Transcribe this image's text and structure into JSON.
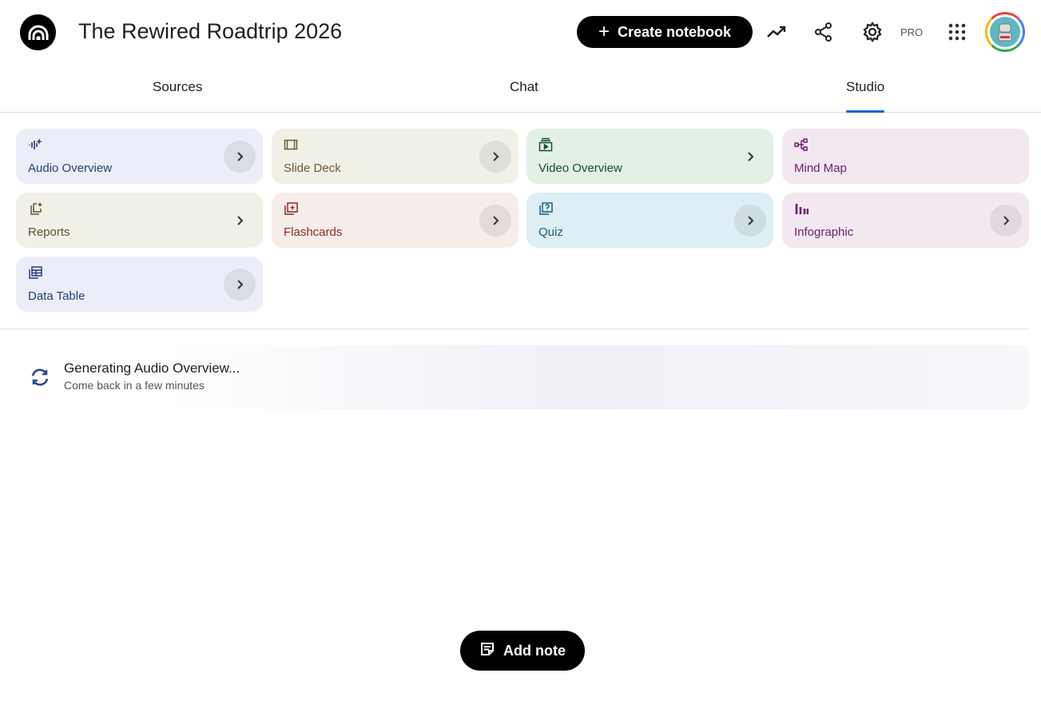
{
  "header": {
    "title": "The Rewired Roadtrip 2026",
    "create_label": "Create notebook",
    "pro_label": "PRO"
  },
  "tabs": [
    {
      "label": "Sources"
    },
    {
      "label": "Chat"
    },
    {
      "label": "Studio",
      "active": true
    }
  ],
  "studio": {
    "cards": [
      {
        "label": "Audio Overview",
        "icon": "audio-waveform-icon",
        "bg": "#ebeef8",
        "fg": "#2b3a7a"
      },
      {
        "label": "Slide Deck",
        "icon": "slides-icon",
        "bg": "#f1f0e7",
        "fg": "#6b5a37"
      },
      {
        "label": "Video Overview",
        "icon": "video-icon",
        "bg": "#e2f0e5",
        "fg": "#1d4b2a"
      },
      {
        "label": "Mind Map",
        "icon": "mind-map-icon",
        "bg": "#f1e8f0",
        "fg": "#6b1f6a"
      },
      {
        "label": "Reports",
        "icon": "reports-icon",
        "bg": "#f1f0e7",
        "fg": "#5d5230"
      },
      {
        "label": "Flashcards",
        "icon": "flashcards-icon",
        "bg": "#f6ece9",
        "fg": "#8a2b23"
      },
      {
        "label": "Quiz",
        "icon": "quiz-icon",
        "bg": "#ddeef4",
        "fg": "#175e7a"
      },
      {
        "label": "Infographic",
        "icon": "infographic-icon",
        "bg": "#f1e8f0",
        "fg": "#6b1f6a"
      },
      {
        "label": "Data Table",
        "icon": "table-icon",
        "bg": "#ebeef8",
        "fg": "#2b3a7a"
      }
    ]
  },
  "generating": {
    "title": "Generating Audio Overview...",
    "subtitle": "Come back in a few minutes"
  },
  "add_note_label": "Add note"
}
